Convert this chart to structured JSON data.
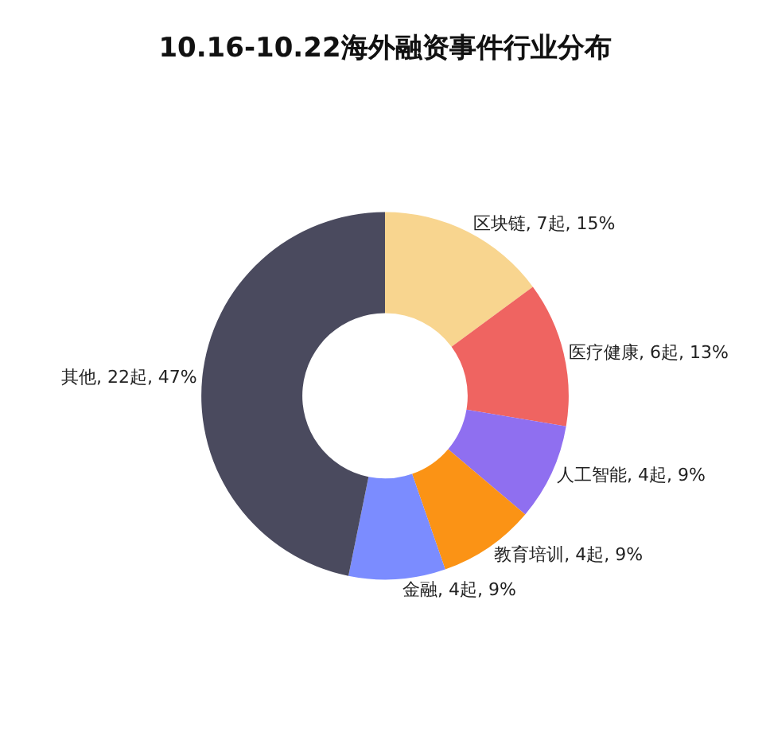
{
  "chart_data": {
    "type": "donut",
    "title": "10.16-10.22海外融资事件行业分布",
    "categories": [
      "区块链",
      "医疗健康",
      "人工智能",
      "教育培训",
      "金融",
      "其他"
    ],
    "values": [
      7,
      6,
      4,
      4,
      4,
      22
    ],
    "value_labels": [
      "7起, 15%",
      "6起, 13%",
      "4起, 9%",
      "4起, 9%",
      "4起, 9%",
      "22起, 47%"
    ],
    "colors": [
      "#f8d58f",
      "#ef6461",
      "#8f6ff0",
      "#fb9315",
      "#7b8cff",
      "#4a4a5e"
    ],
    "legend": false
  }
}
